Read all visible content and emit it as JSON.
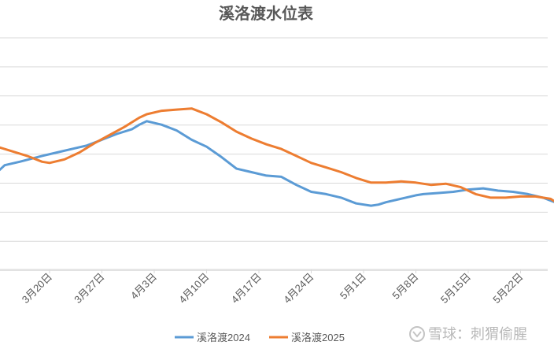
{
  "chart_data": {
    "type": "line",
    "title": "溪洛渡水位表",
    "xlabel": "",
    "ylabel": "",
    "x_ticks": [
      "3月20日",
      "3月27日",
      "4月3日",
      "4月10日",
      "4月17日",
      "4月24日",
      "5月1日",
      "5月8日",
      "5月15日",
      "5月22日"
    ],
    "x_range": [
      "3月13日",
      "5月27日"
    ],
    "gridlines": 9,
    "legend_position": "bottom",
    "series": [
      {
        "name": "溪洛渡2024",
        "color": "#5b9bd5",
        "points": [
          [
            "3月13日",
            0.42
          ],
          [
            "3月14日",
            0.45
          ],
          [
            "3月16日",
            0.465
          ],
          [
            "3月19日",
            0.49
          ],
          [
            "3月21日",
            0.505
          ],
          [
            "3月23日",
            0.52
          ],
          [
            "3月25日",
            0.535
          ],
          [
            "3月27日",
            0.56
          ],
          [
            "3月29日",
            0.585
          ],
          [
            "3月31日",
            0.605
          ],
          [
            "4月1日",
            0.625
          ],
          [
            "4月2日",
            0.64
          ],
          [
            "4月4日",
            0.625
          ],
          [
            "4月6日",
            0.6
          ],
          [
            "4月8日",
            0.56
          ],
          [
            "4月10日",
            0.53
          ],
          [
            "4月12日",
            0.485
          ],
          [
            "4月14日",
            0.435
          ],
          [
            "4月16日",
            0.42
          ],
          [
            "4月18日",
            0.405
          ],
          [
            "4月20日",
            0.4
          ],
          [
            "4月22日",
            0.365
          ],
          [
            "4月24日",
            0.335
          ],
          [
            "4月26日",
            0.325
          ],
          [
            "4月28日",
            0.31
          ],
          [
            "4月30日",
            0.285
          ],
          [
            "5月2日",
            0.275
          ],
          [
            "5月3日",
            0.28
          ],
          [
            "5月4日",
            0.29
          ],
          [
            "5月6日",
            0.305
          ],
          [
            "5月8日",
            0.32
          ],
          [
            "5月9日",
            0.325
          ],
          [
            "5月11日",
            0.33
          ],
          [
            "5月13日",
            0.335
          ],
          [
            "5月15日",
            0.345
          ],
          [
            "5月17日",
            0.35
          ],
          [
            "5月19日",
            0.34
          ],
          [
            "5月21日",
            0.335
          ],
          [
            "5月23日",
            0.325
          ],
          [
            "5月25日",
            0.31
          ],
          [
            "5月27日",
            0.285
          ]
        ]
      },
      {
        "name": "溪洛渡2025",
        "color": "#ed7d31",
        "points": [
          [
            "3月13日",
            0.53
          ],
          [
            "3月15日",
            0.51
          ],
          [
            "3月17日",
            0.49
          ],
          [
            "3月19日",
            0.465
          ],
          [
            "3月20日",
            0.46
          ],
          [
            "3月22日",
            0.475
          ],
          [
            "3月24日",
            0.505
          ],
          [
            "3月26日",
            0.545
          ],
          [
            "3月28日",
            0.58
          ],
          [
            "3月30日",
            0.615
          ],
          [
            "4月1日",
            0.655
          ],
          [
            "4月2日",
            0.67
          ],
          [
            "4月4日",
            0.685
          ],
          [
            "4月6日",
            0.69
          ],
          [
            "4月8日",
            0.695
          ],
          [
            "4月10日",
            0.67
          ],
          [
            "4月12日",
            0.635
          ],
          [
            "4月14日",
            0.595
          ],
          [
            "4月16日",
            0.565
          ],
          [
            "4月18日",
            0.54
          ],
          [
            "4月20日",
            0.52
          ],
          [
            "4月22日",
            0.49
          ],
          [
            "4月24日",
            0.46
          ],
          [
            "4月26日",
            0.44
          ],
          [
            "4月28日",
            0.42
          ],
          [
            "4月30日",
            0.395
          ],
          [
            "5月2日",
            0.375
          ],
          [
            "5月4日",
            0.375
          ],
          [
            "5月6日",
            0.38
          ],
          [
            "5月8日",
            0.375
          ],
          [
            "5月10日",
            0.365
          ],
          [
            "5月12日",
            0.37
          ],
          [
            "5月14日",
            0.355
          ],
          [
            "5月16日",
            0.325
          ],
          [
            "5月18日",
            0.31
          ],
          [
            "5月20日",
            0.31
          ],
          [
            "5月22日",
            0.315
          ],
          [
            "5月24日",
            0.315
          ],
          [
            "5月26日",
            0.305
          ],
          [
            "5月27日",
            0.285
          ]
        ]
      }
    ]
  },
  "watermark": {
    "text": "雪球：刺猬偷腥",
    "icon": "xueqiu-logo-icon"
  }
}
